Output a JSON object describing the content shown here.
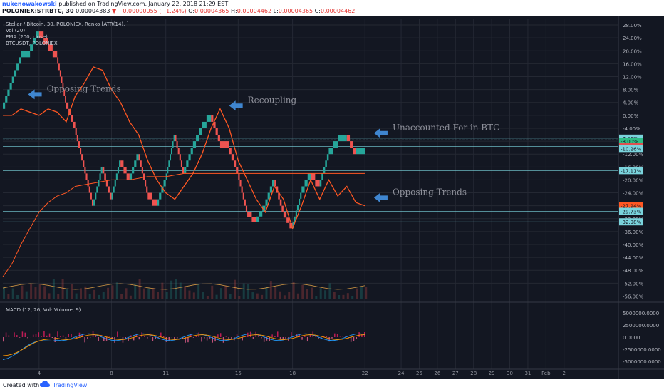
{
  "header": {
    "user": "nukenowakowski",
    "published": "published on TradingView.com, January 22, 2018 21:29 EST",
    "symbol": "POLONIEX:STRBTC, 30",
    "price": "0.00004383",
    "change_arrow": "▼",
    "change": "−0.00000055 (−1.24%)",
    "o_label": "O:",
    "o_value": "0.00004365",
    "h_label": "H:",
    "h_value": "0.00004462",
    "l_label": "L:",
    "l_value": "0.00004365",
    "c_label": "C:",
    "c_value": "0.00004462"
  },
  "legend": {
    "title": "Stellar / Bitcoin, 30, POLONIEX, Renko [ATR(14), ]",
    "vol": "Vol (20)",
    "ema": "EMA (200, close)",
    "btc": "BTCUSDT, POLONIEX",
    "macd": "MACD (12, 26, Vol: Volume, 9)"
  },
  "footer": {
    "created": "Created with",
    "brand": "TradingView"
  },
  "colors": {
    "background": "#131722",
    "grid": "#242833",
    "renko_up": "#26a69a",
    "renko_down": "#ef5350",
    "btc_line": "#ff5722",
    "ema": "#ff5722",
    "arrow": "#3f86d0",
    "annotation": "#8d8f99",
    "hline": "#7ad3dc"
  },
  "annotations": [
    {
      "id": "opposing1",
      "text": "Opposing Trends",
      "x": 3.4,
      "y": 6.5,
      "arrow": "left"
    },
    {
      "id": "recoupling",
      "text": "Recoupling",
      "x": 14.5,
      "y": 3.0,
      "arrow": "left"
    },
    {
      "id": "unaccounted",
      "text": "Unaccounted For in BTC",
      "x": 22.5,
      "y": -5.5,
      "arrow": "left"
    },
    {
      "id": "opposing2",
      "text": "Opposing Trends",
      "x": 22.5,
      "y": -25.5,
      "arrow": "left"
    }
  ],
  "chart_data": {
    "type": "line",
    "y_axis": {
      "unit": "%",
      "ticks": [
        "28.00%",
        "24.00%",
        "20.00%",
        "16.00%",
        "12.00%",
        "8.00%",
        "4.00%",
        "0.00%",
        "-4.00%",
        "-8.00%",
        "-12.00%",
        "-16.00%",
        "-20.00%",
        "-24.00%",
        "-28.00%",
        "-32.00%",
        "-36.00%",
        "-40.00%",
        "-44.00%",
        "-48.00%",
        "-52.00%",
        "-56.00%"
      ],
      "range": [
        -57,
        30
      ]
    },
    "x_axis": {
      "ticks": [
        "4",
        "8",
        "11",
        "15",
        "18",
        "22",
        "24",
        "25",
        "26",
        "27",
        "28",
        "29",
        "30",
        "31",
        "Feb",
        "2"
      ],
      "tick_positions": [
        4,
        8,
        11,
        15,
        18,
        22,
        24,
        25,
        26,
        27,
        28,
        29,
        30,
        31,
        32,
        33
      ],
      "range": [
        2,
        36
      ]
    },
    "price_labels": [
      {
        "text": "-7.06%",
        "value": -7.06,
        "color": "#7ad3dc"
      },
      {
        "text": "-8.00%",
        "value": -8.0,
        "color": "#2ebd85"
      },
      {
        "text": "-9.63%",
        "value": -9.63,
        "color": "#e05050"
      },
      {
        "text": "-10.26%",
        "value": -10.26,
        "color": "#7ad3dc"
      },
      {
        "text": "-17.11%",
        "value": -17.11,
        "color": "#7ad3dc"
      },
      {
        "text": "-27.94%",
        "value": -27.94,
        "color": "#ff5722"
      },
      {
        "text": "-29.73%",
        "value": -29.73,
        "color": "#7ad3dc"
      },
      {
        "text": "-32.98%",
        "value": -32.98,
        "color": "#7ad3dc"
      }
    ],
    "horizontal_lines": [
      -7.06,
      -7.6,
      -9.63,
      -17.11,
      -29.73,
      -31.5,
      -32.98
    ],
    "series": [
      {
        "name": "Stellar / Bitcoin",
        "style": "renko",
        "x": [
          2,
          2.5,
          3,
          3.5,
          4,
          4.5,
          5,
          5.5,
          6,
          6.5,
          7,
          7.5,
          8,
          8.5,
          9,
          9.5,
          10,
          10.5,
          11,
          11.5,
          12,
          12.5,
          13,
          13.5,
          14,
          14.5,
          15,
          15.5,
          16,
          16.5,
          17,
          17.5,
          18,
          18.5,
          19,
          19.5,
          20,
          20.5,
          21,
          21.5,
          22
        ],
        "y": [
          2,
          10,
          18,
          20,
          26,
          22,
          18,
          4,
          -4,
          -16,
          -28,
          -16,
          -26,
          -14,
          -20,
          -12,
          -24,
          -28,
          -20,
          -6,
          -18,
          -10,
          -4,
          0,
          -8,
          -10,
          -18,
          -30,
          -33,
          -28,
          -20,
          -30,
          -35,
          -24,
          -18,
          -22,
          -12,
          -8,
          -6,
          -12,
          -10
        ]
      },
      {
        "name": "BTCUSDT",
        "style": "line",
        "x": [
          2,
          2.5,
          3,
          3.5,
          4,
          4.5,
          5,
          5.5,
          6,
          6.5,
          7,
          7.5,
          8,
          8.5,
          9,
          9.5,
          10,
          10.5,
          11,
          11.5,
          12,
          12.5,
          13,
          13.5,
          14,
          14.5,
          15,
          15.5,
          16,
          16.5,
          17,
          17.5,
          18,
          18.5,
          19,
          19.5,
          20,
          20.5,
          21,
          21.5,
          22
        ],
        "y": [
          0,
          0,
          2,
          1,
          0,
          2,
          1,
          -2,
          6,
          10,
          15,
          14,
          8,
          4,
          -2,
          -6,
          -14,
          -20,
          -24,
          -26,
          -22,
          -18,
          -12,
          -4,
          2,
          -4,
          -14,
          -20,
          -26,
          -30,
          -22,
          -26,
          -35,
          -28,
          -20,
          -26,
          -20,
          -25,
          -22,
          -27,
          -28
        ]
      },
      {
        "name": "EMA (200, close)",
        "style": "line",
        "x": [
          2,
          2.5,
          3,
          3.5,
          4,
          4.5,
          5,
          5.5,
          6,
          7,
          8,
          9,
          10,
          11,
          12,
          13,
          14,
          15,
          16,
          17,
          18,
          19,
          20,
          21,
          22
        ],
        "y": [
          -50,
          -46,
          -40,
          -35,
          -30,
          -27,
          -25,
          -24,
          -22,
          -21,
          -20,
          -20,
          -19,
          -19,
          -18,
          -18,
          -18,
          -18,
          -18,
          -18,
          -18,
          -18,
          -18,
          -18,
          -18
        ]
      }
    ],
    "macd": {
      "ticks": [
        "5000000.0000",
        "2500000.0000",
        "0.0000",
        "-2500000.0000",
        "-5000000.0000"
      ],
      "range": [
        -6000000,
        6000000
      ]
    }
  }
}
